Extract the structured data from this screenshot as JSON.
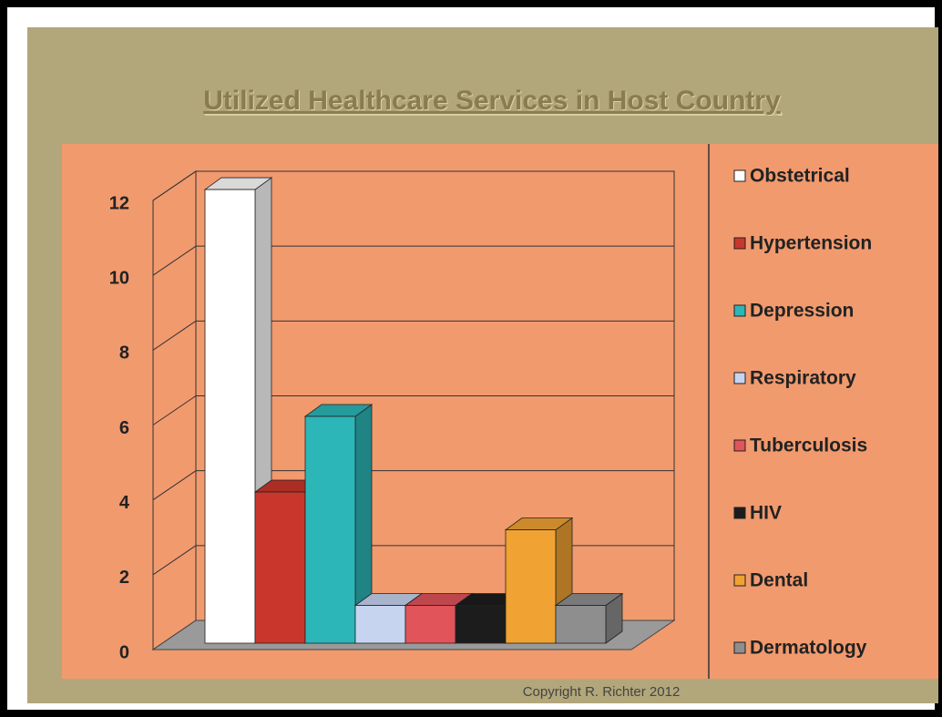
{
  "chart_data": {
    "type": "bar3d",
    "title": "Utilized Healthcare Services in Host Country",
    "categories": [
      "Obstetrical",
      "Hypertension",
      "Depression",
      "Respiratory",
      "Tuberculosis",
      "HIV",
      "Dental",
      "Dermatology"
    ],
    "values": [
      12,
      4,
      6,
      1,
      1,
      1,
      3,
      1
    ],
    "colors": [
      "#ffffff",
      "#c9362c",
      "#2cb6b8",
      "#c6d4f0",
      "#e0545a",
      "#1c1c1c",
      "#f0a232",
      "#8e8e8e"
    ],
    "ylim": [
      0,
      12
    ],
    "yticks": [
      0,
      2,
      4,
      6,
      8,
      10,
      12
    ],
    "grid": true,
    "legend": "right",
    "annotation": "Copyright R. Richter 2012"
  }
}
